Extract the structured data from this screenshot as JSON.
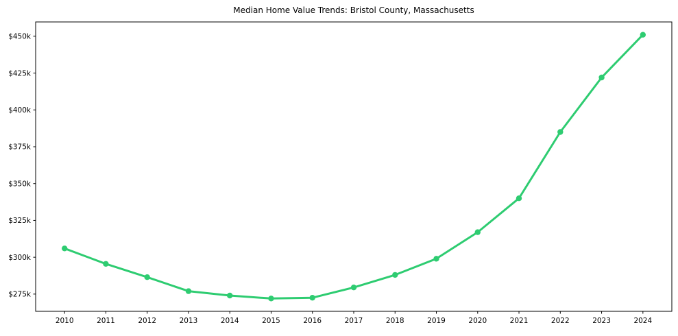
{
  "figure": {
    "title": "Median Home Value Trends: Bristol County, Massachusetts"
  },
  "chart_data": {
    "type": "line",
    "title": "Median Home Value Trends: Bristol County, Massachusetts",
    "xlabel": "",
    "ylabel": "",
    "x": [
      2010,
      2011,
      2012,
      2013,
      2014,
      2015,
      2016,
      2017,
      2018,
      2019,
      2020,
      2021,
      2022,
      2023,
      2024
    ],
    "x_tick_labels": [
      "2010",
      "2011",
      "2012",
      "2013",
      "2014",
      "2015",
      "2016",
      "2017",
      "2018",
      "2019",
      "2020",
      "2021",
      "2022",
      "2023",
      "2024"
    ],
    "series": [
      {
        "name": "Median Home Value",
        "values": [
          306000,
          295500,
          286500,
          277000,
          274000,
          272000,
          272500,
          279500,
          288000,
          299000,
          317000,
          340000,
          385000,
          422000,
          451000
        ]
      }
    ],
    "y_ticks": [
      275000,
      300000,
      325000,
      350000,
      375000,
      400000,
      425000,
      450000
    ],
    "y_tick_labels": [
      "$275k",
      "$300k",
      "$325k",
      "$350k",
      "$375k",
      "$400k",
      "$425k",
      "$450k"
    ],
    "xlim": [
      2009.3,
      2024.7
    ],
    "ylim": [
      263300,
      459700
    ],
    "grid": false,
    "legend": null,
    "line_color": "#2ecc71",
    "marker": "circle",
    "marker_radius": 4.2,
    "line_width": 3,
    "axis_color": "#000000",
    "background_color": "#ffffff"
  }
}
